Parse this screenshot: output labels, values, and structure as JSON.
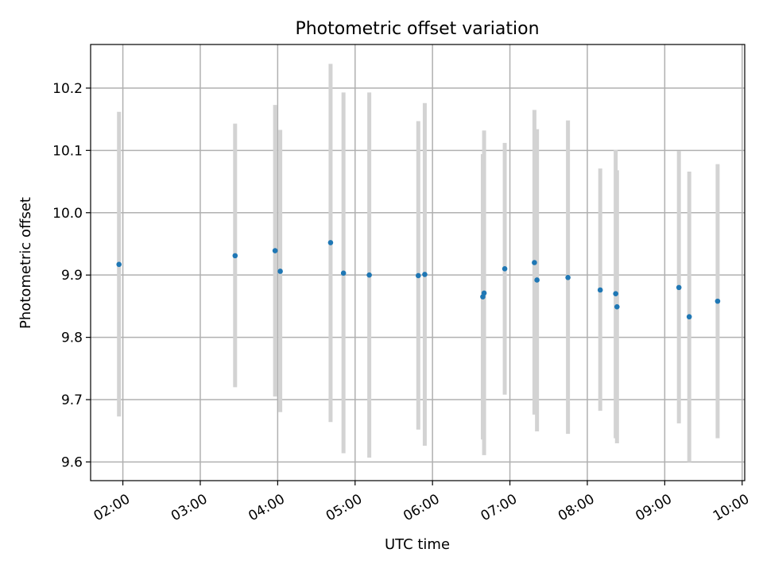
{
  "chart_data": {
    "type": "scatter",
    "title": "Photometric offset variation",
    "xlabel": "UTC time",
    "ylabel": "Photometric offset",
    "grid": true,
    "x_ticks": [
      "02:00",
      "03:00",
      "04:00",
      "05:00",
      "06:00",
      "07:00",
      "08:00",
      "09:00",
      "10:00"
    ],
    "y_ticks": [
      9.6,
      9.7,
      9.8,
      9.9,
      10.0,
      10.1,
      10.2
    ],
    "xlim": [
      "01:35",
      "10:02"
    ],
    "ylim": [
      9.57,
      10.27
    ],
    "colors": {
      "points": "#1f77b4",
      "error_bars": "#d3d3d3",
      "grid": "#b0b0b0"
    },
    "points": [
      {
        "x": "01:57",
        "y": 9.917,
        "yerr_low": 9.673,
        "yerr_high": 10.162
      },
      {
        "x": "03:27",
        "y": 9.931,
        "yerr_low": 9.72,
        "yerr_high": 10.143
      },
      {
        "x": "03:58",
        "y": 9.939,
        "yerr_low": 9.705,
        "yerr_high": 10.173
      },
      {
        "x": "04:02",
        "y": 9.906,
        "yerr_low": 9.68,
        "yerr_high": 10.133
      },
      {
        "x": "04:41",
        "y": 9.952,
        "yerr_low": 9.664,
        "yerr_high": 10.239
      },
      {
        "x": "04:51",
        "y": 9.903,
        "yerr_low": 9.614,
        "yerr_high": 10.193
      },
      {
        "x": "05:11",
        "y": 9.9,
        "yerr_low": 9.607,
        "yerr_high": 10.193
      },
      {
        "x": "05:49",
        "y": 9.899,
        "yerr_low": 9.652,
        "yerr_high": 10.147
      },
      {
        "x": "05:54",
        "y": 9.901,
        "yerr_low": 9.626,
        "yerr_high": 10.176
      },
      {
        "x": "06:39",
        "y": 9.865,
        "yerr_low": 9.636,
        "yerr_high": 10.094
      },
      {
        "x": "06:40",
        "y": 9.871,
        "yerr_low": 9.611,
        "yerr_high": 10.132
      },
      {
        "x": "06:56",
        "y": 9.91,
        "yerr_low": 9.708,
        "yerr_high": 10.112
      },
      {
        "x": "07:19",
        "y": 9.92,
        "yerr_low": 9.676,
        "yerr_high": 10.165
      },
      {
        "x": "07:21",
        "y": 9.892,
        "yerr_low": 9.649,
        "yerr_high": 10.134
      },
      {
        "x": "07:45",
        "y": 9.896,
        "yerr_low": 9.645,
        "yerr_high": 10.148
      },
      {
        "x": "08:10",
        "y": 9.876,
        "yerr_low": 9.682,
        "yerr_high": 10.071
      },
      {
        "x": "08:22",
        "y": 9.87,
        "yerr_low": 9.638,
        "yerr_high": 10.101
      },
      {
        "x": "08:23",
        "y": 9.849,
        "yerr_low": 9.63,
        "yerr_high": 10.068
      },
      {
        "x": "09:11",
        "y": 9.88,
        "yerr_low": 9.662,
        "yerr_high": 10.099
      },
      {
        "x": "09:19",
        "y": 9.833,
        "yerr_low": 9.6,
        "yerr_high": 10.066
      },
      {
        "x": "09:41",
        "y": 9.858,
        "yerr_low": 9.638,
        "yerr_high": 10.078
      }
    ]
  }
}
